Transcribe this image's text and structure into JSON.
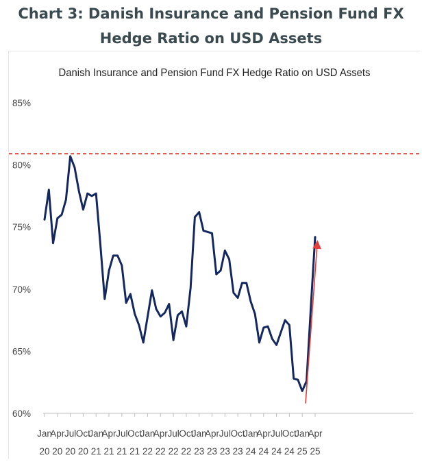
{
  "page_title": "Chart 3: Danish Insurance and Pension Fund FX Hedge Ratio on USD Assets",
  "chart_data": {
    "type": "line",
    "title": "Danish Insurance and Pension Fund FX Hedge Ratio on USD Assets",
    "xlabel": "",
    "ylabel": "",
    "ylim": [
      60,
      85
    ],
    "y_ticks": [
      60,
      65,
      70,
      75,
      80,
      85
    ],
    "y_tick_labels": [
      "60%",
      "65%",
      "70%",
      "75%",
      "80%",
      "85%"
    ],
    "x_tick_labels": [
      {
        "month": "Jan",
        "year": "20"
      },
      {
        "month": "Apr",
        "year": "20"
      },
      {
        "month": "Jul",
        "year": "20"
      },
      {
        "month": "Oct",
        "year": "20"
      },
      {
        "month": "Jan",
        "year": "21"
      },
      {
        "month": "Apr",
        "year": "21"
      },
      {
        "month": "Jul",
        "year": "21"
      },
      {
        "month": "Oct",
        "year": "21"
      },
      {
        "month": "Jan",
        "year": "22"
      },
      {
        "month": "Apr",
        "year": "22"
      },
      {
        "month": "Jul",
        "year": "22"
      },
      {
        "month": "Oct",
        "year": "22"
      },
      {
        "month": "Jan",
        "year": "23"
      },
      {
        "month": "Apr",
        "year": "23"
      },
      {
        "month": "Jul",
        "year": "23"
      },
      {
        "month": "Oct",
        "year": "23"
      },
      {
        "month": "Jan",
        "year": "24"
      },
      {
        "month": "Apr",
        "year": "24"
      },
      {
        "month": "Jul",
        "year": "24"
      },
      {
        "month": "Oct",
        "year": "24"
      },
      {
        "month": "Jan",
        "year": "25"
      },
      {
        "month": "Apr",
        "year": "25"
      }
    ],
    "series": [
      {
        "x": [
          "2020-01",
          "2020-02",
          "2020-03",
          "2020-04",
          "2020-05",
          "2020-06",
          "2020-07",
          "2020-08",
          "2020-09",
          "2020-10",
          "2020-11",
          "2020-12",
          "2021-01",
          "2021-02",
          "2021-03",
          "2021-04",
          "2021-05",
          "2021-06",
          "2021-07",
          "2021-08",
          "2021-09",
          "2021-10",
          "2021-11",
          "2021-12",
          "2022-01",
          "2022-02",
          "2022-03",
          "2022-04",
          "2022-05",
          "2022-06",
          "2022-07",
          "2022-08",
          "2022-09",
          "2022-10",
          "2022-11",
          "2022-12",
          "2023-01",
          "2023-02",
          "2023-03",
          "2023-04",
          "2023-05",
          "2023-06",
          "2023-07",
          "2023-08",
          "2023-09",
          "2023-10",
          "2023-11",
          "2023-12",
          "2024-01",
          "2024-02",
          "2024-03",
          "2024-04",
          "2024-05",
          "2024-06",
          "2024-07",
          "2024-08",
          "2024-09",
          "2024-10",
          "2024-11",
          "2024-12",
          "2025-01",
          "2025-02",
          "2025-03",
          "2025-04"
        ],
        "values": [
          75.6,
          78.0,
          73.7,
          75.7,
          76.0,
          77.2,
          80.7,
          79.8,
          77.9,
          76.4,
          77.7,
          77.5,
          77.7,
          73.6,
          69.2,
          71.5,
          72.7,
          72.7,
          71.9,
          68.9,
          69.6,
          68.0,
          67.1,
          65.7,
          67.8,
          69.9,
          68.4,
          67.8,
          68.1,
          68.8,
          65.9,
          67.9,
          68.2,
          67.0,
          70.1,
          75.8,
          76.2,
          74.7,
          74.6,
          74.5,
          71.2,
          71.5,
          73.1,
          72.4,
          69.7,
          69.3,
          70.5,
          70.5,
          69.0,
          68.0,
          65.7,
          66.9,
          67.0,
          66.0,
          65.5,
          66.5,
          67.5,
          67.1,
          62.8,
          62.7,
          61.8,
          62.6,
          68.5,
          74.2
        ]
      }
    ],
    "reference_line": {
      "value": 80.9,
      "style": "dashed",
      "color": "#e0403a"
    },
    "colors": {
      "line": "#14285f",
      "reference": "#e0403a",
      "arrow": "#e0403a"
    }
  }
}
